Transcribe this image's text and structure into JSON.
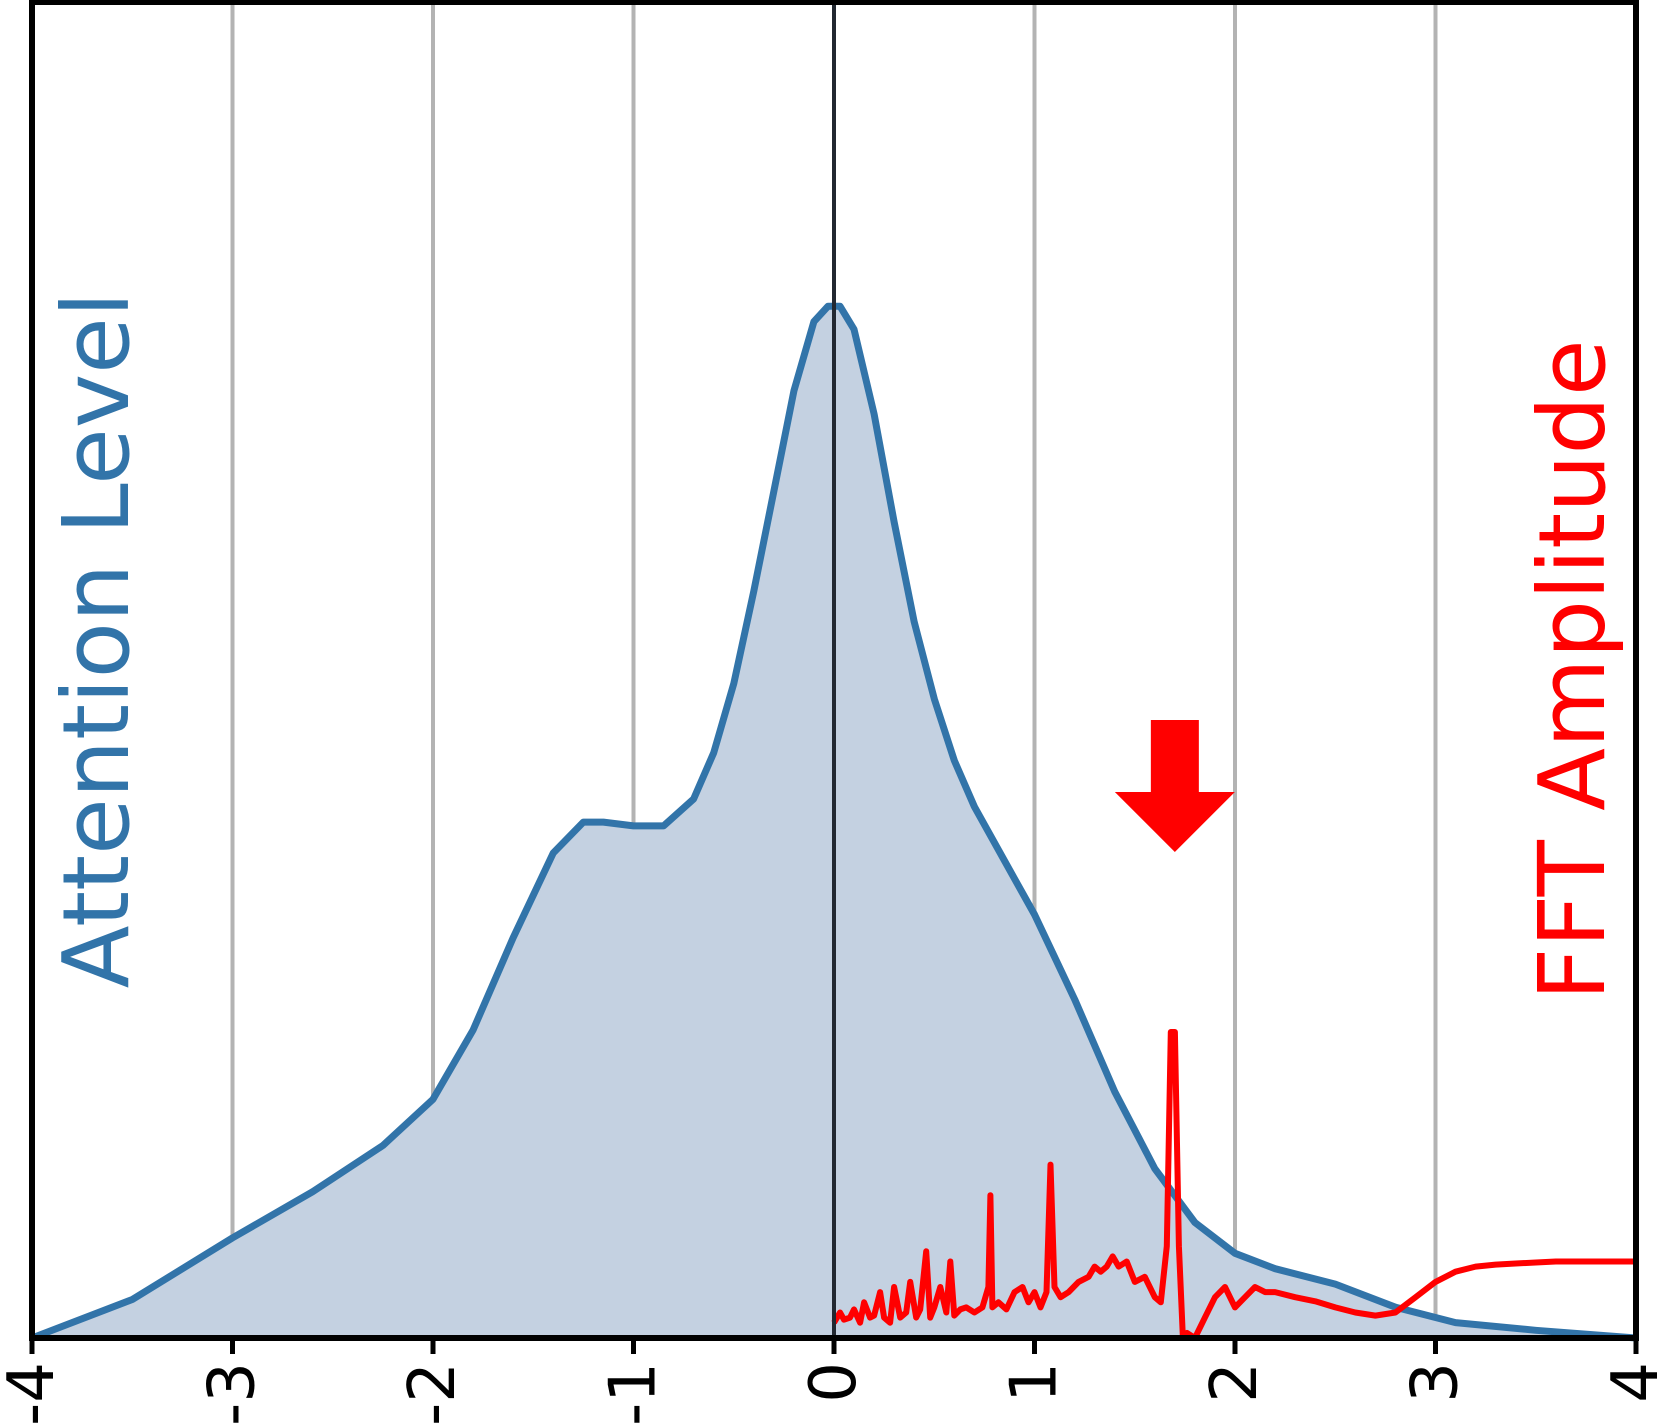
{
  "chart_data": {
    "type": "area",
    "xlim": [
      -4,
      4
    ],
    "xticks": [
      "-4",
      "-3",
      "-2",
      "-1",
      "0",
      "1",
      "2",
      "3",
      "4"
    ],
    "tick_label_rotation": "vertical",
    "grid": "vertical lines at integer x",
    "zero_line": true,
    "left_label": "Attention Level",
    "right_label": "FFT Amplitude",
    "marker": "down arrow above the FFT peak at x = 1.7",
    "series": [
      {
        "color": "#3274a9",
        "fill": "#c4d1e1",
        "role": "Attention Level (left)",
        "x": [
          -4.0,
          -3.5,
          -3.0,
          -2.6,
          -2.25,
          -2.0,
          -1.8,
          -1.6,
          -1.4,
          -1.25,
          -1.15,
          -1.0,
          -0.85,
          -0.7,
          -0.6,
          -0.5,
          -0.4,
          -0.3,
          -0.2,
          -0.1,
          -0.03,
          0.03,
          0.1,
          0.2,
          0.3,
          0.4,
          0.5,
          0.6,
          0.7,
          0.85,
          1.0,
          1.2,
          1.4,
          1.6,
          1.8,
          2.0,
          2.2,
          2.5,
          2.8,
          3.1,
          3.5,
          4.0
        ],
        "y": [
          0.0,
          0.05,
          0.13,
          0.19,
          0.25,
          0.31,
          0.4,
          0.52,
          0.63,
          0.67,
          0.67,
          0.665,
          0.665,
          0.7,
          0.76,
          0.85,
          0.97,
          1.1,
          1.23,
          1.32,
          1.34,
          1.34,
          1.31,
          1.2,
          1.06,
          0.93,
          0.83,
          0.75,
          0.69,
          0.62,
          0.55,
          0.44,
          0.32,
          0.22,
          0.15,
          0.11,
          0.09,
          0.07,
          0.04,
          0.02,
          0.01,
          0.0
        ]
      },
      {
        "color": "#ff0000",
        "role": "FFT Amplitude (right)",
        "x": [
          0.0,
          0.03,
          0.05,
          0.08,
          0.1,
          0.13,
          0.15,
          0.18,
          0.2,
          0.23,
          0.25,
          0.28,
          0.3,
          0.33,
          0.36,
          0.38,
          0.41,
          0.43,
          0.46,
          0.48,
          0.5,
          0.53,
          0.56,
          0.58,
          0.6,
          0.63,
          0.66,
          0.7,
          0.74,
          0.77,
          0.78,
          0.79,
          0.82,
          0.86,
          0.9,
          0.94,
          0.97,
          1.0,
          1.03,
          1.06,
          1.08,
          1.1,
          1.13,
          1.17,
          1.22,
          1.27,
          1.3,
          1.33,
          1.36,
          1.39,
          1.42,
          1.46,
          1.5,
          1.55,
          1.6,
          1.63,
          1.66,
          1.68,
          1.7,
          1.72,
          1.74,
          1.76,
          1.8,
          1.85,
          1.9,
          1.95,
          2.0,
          2.05,
          2.1,
          2.15,
          2.2,
          2.3,
          2.4,
          2.5,
          2.6,
          2.7,
          2.8,
          2.9,
          3.0,
          3.1,
          3.2,
          3.3,
          3.4,
          3.5,
          3.6,
          3.7,
          3.8,
          3.9,
          4.0
        ],
        "y": [
          0.015,
          0.025,
          0.018,
          0.02,
          0.028,
          0.015,
          0.035,
          0.02,
          0.022,
          0.045,
          0.02,
          0.015,
          0.05,
          0.02,
          0.025,
          0.055,
          0.02,
          0.028,
          0.085,
          0.02,
          0.03,
          0.05,
          0.025,
          0.075,
          0.022,
          0.028,
          0.03,
          0.025,
          0.03,
          0.05,
          0.14,
          0.03,
          0.035,
          0.028,
          0.045,
          0.05,
          0.035,
          0.045,
          0.03,
          0.045,
          0.17,
          0.05,
          0.04,
          0.045,
          0.055,
          0.06,
          0.07,
          0.065,
          0.07,
          0.08,
          0.07,
          0.075,
          0.055,
          0.06,
          0.04,
          0.035,
          0.09,
          0.3,
          0.3,
          0.09,
          0.0,
          0.005,
          0.0,
          0.02,
          0.04,
          0.05,
          0.03,
          0.04,
          0.05,
          0.045,
          0.045,
          0.04,
          0.036,
          0.03,
          0.025,
          0.022,
          0.025,
          0.04,
          0.055,
          0.065,
          0.07,
          0.072,
          0.073,
          0.074,
          0.075,
          0.075,
          0.075,
          0.075,
          0.075
        ]
      }
    ]
  }
}
